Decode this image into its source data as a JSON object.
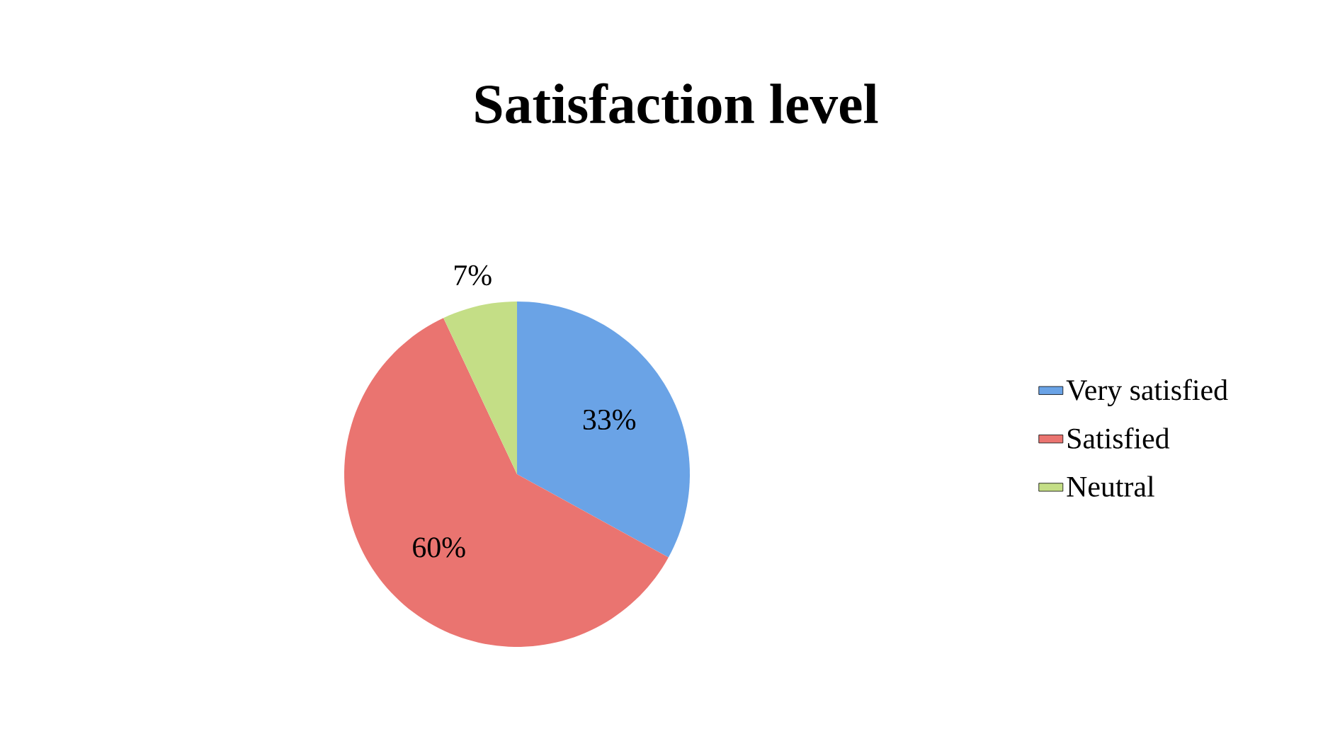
{
  "chart_data": {
    "type": "pie",
    "title": "Satisfaction level",
    "categories": [
      "Very satisfied",
      "Satisfied",
      "Neutral"
    ],
    "values": [
      33,
      60,
      7
    ],
    "colors": [
      "#6aa3e6",
      "#ea7470",
      "#c4de86"
    ],
    "data_labels": true,
    "value_labels": [
      "33%",
      "60%",
      "7%"
    ],
    "legend": "right"
  }
}
